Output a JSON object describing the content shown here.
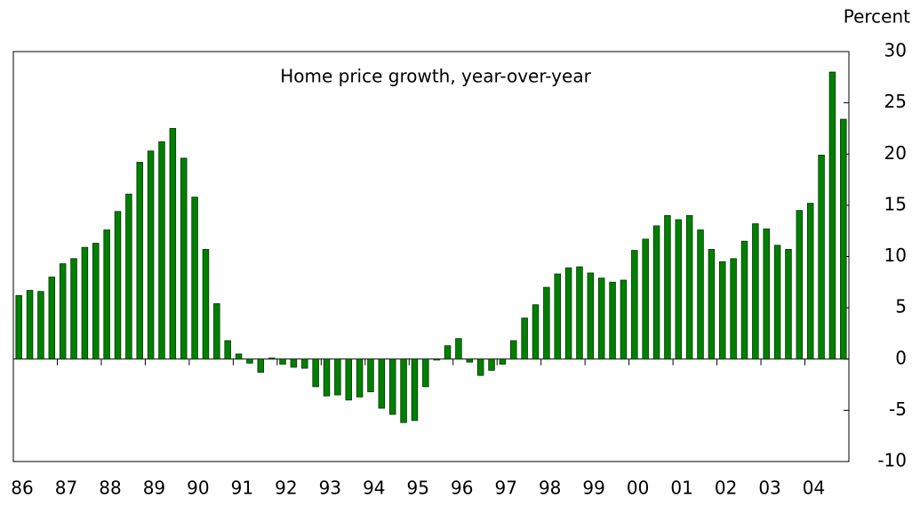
{
  "chart_data": {
    "type": "bar",
    "title": "Home price growth, year-over-year",
    "y_axis_label": "Percent",
    "categories": [
      "86",
      null,
      null,
      null,
      "87",
      null,
      null,
      null,
      "88",
      null,
      null,
      null,
      "89",
      null,
      null,
      null,
      "90",
      null,
      null,
      null,
      "91",
      null,
      null,
      null,
      "92",
      null,
      null,
      null,
      "93",
      null,
      null,
      null,
      "94",
      null,
      null,
      null,
      "95",
      null,
      null,
      null,
      "96",
      null,
      null,
      null,
      "97",
      null,
      null,
      null,
      "98",
      null,
      null,
      null,
      "99",
      null,
      null,
      null,
      "00",
      null,
      null,
      null,
      "01",
      null,
      null,
      null,
      "02",
      null,
      null,
      null,
      "03",
      null,
      null,
      null,
      "04",
      null,
      null,
      null
    ],
    "values": [
      6.2,
      6.7,
      6.6,
      8.0,
      9.3,
      9.8,
      10.9,
      11.3,
      12.6,
      14.4,
      16.1,
      19.2,
      20.3,
      21.2,
      22.5,
      19.6,
      15.8,
      10.7,
      5.4,
      1.8,
      0.5,
      -0.4,
      -1.3,
      0.1,
      -0.5,
      -0.8,
      -0.9,
      -2.7,
      -3.6,
      -3.5,
      -4.0,
      -3.7,
      -3.2,
      -4.8,
      -5.4,
      -6.2,
      -6.0,
      -2.7,
      -0.1,
      1.3,
      2.0,
      -0.3,
      -1.6,
      -1.1,
      -0.5,
      1.8,
      4.0,
      5.3,
      7.0,
      8.3,
      8.9,
      9.0,
      8.4,
      7.9,
      7.5,
      7.7,
      10.6,
      11.7,
      13.0,
      14.0,
      13.6,
      14.0,
      12.6,
      10.7,
      9.5,
      9.8,
      11.5,
      13.2,
      12.7,
      11.1,
      10.7,
      14.5,
      15.2,
      19.9,
      28.0,
      23.4
    ],
    "color": "#008000",
    "ylim": [
      -10,
      30
    ],
    "yticks": [
      -10,
      -5,
      0,
      5,
      10,
      15,
      20,
      25,
      30
    ],
    "grid": false
  }
}
